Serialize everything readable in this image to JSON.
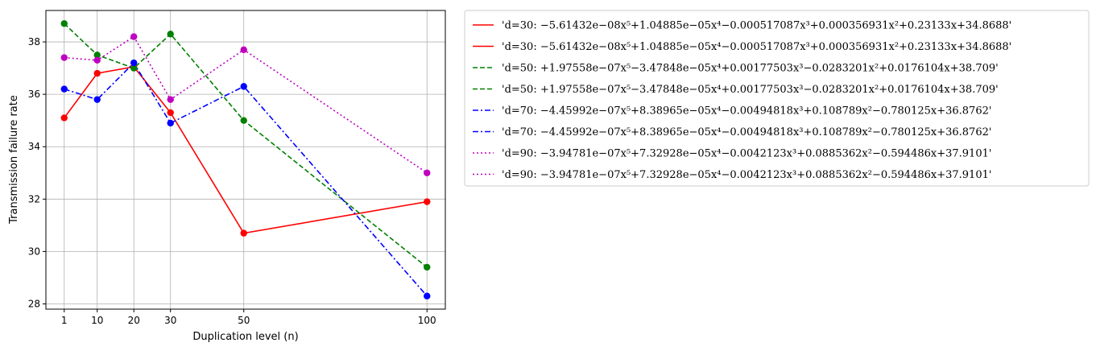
{
  "chart_data": {
    "type": "line",
    "xlabel": "Duplication level (n)",
    "ylabel": "Transmission failure rate",
    "x": [
      1,
      10,
      20,
      30,
      50,
      100
    ],
    "x_ticks": [
      "1",
      "10",
      "20",
      "30",
      "50",
      "100"
    ],
    "y_ticks": [
      "28",
      "30",
      "32",
      "34",
      "36",
      "38"
    ],
    "xlim": [
      -4,
      105
    ],
    "ylim": [
      27.8,
      39.2
    ],
    "grid": true,
    "legend_position": "outside-right",
    "series": [
      {
        "name": "'d=30: −5.61432e−08x⁵+1.04885e−05x⁴−0.000517087x³+0.000356931x²+0.23133x+34.8688'",
        "values": [
          35.1,
          36.8,
          37.05,
          35.3,
          30.7,
          31.9
        ],
        "color": "#ff0000",
        "dash": "solid"
      },
      {
        "name": "'d=30: −5.61432e−08x⁵+1.04885e−05x⁴−0.000517087x³+0.000356931x²+0.23133x+34.8688'",
        "values": null,
        "color": "#ff0000",
        "dash": "solid"
      },
      {
        "name": "'d=50: +1.97558e−07x⁵−3.47848e−05x⁴+0.00177503x³−0.0283201x²+0.0176104x+38.709'",
        "values": [
          38.7,
          37.5,
          37.0,
          38.3,
          35.0,
          29.4
        ],
        "color": "#008000",
        "dash": "dashed"
      },
      {
        "name": "'d=50: +1.97558e−07x⁵−3.47848e−05x⁴+0.00177503x³−0.0283201x²+0.0176104x+38.709'",
        "values": null,
        "color": "#008000",
        "dash": "dashed"
      },
      {
        "name": "'d=70: −4.45992e−07x⁵+8.38965e−05x⁴−0.00494818x³+0.108789x²−0.780125x+36.8762'",
        "values": [
          36.2,
          35.8,
          37.2,
          34.9,
          36.3,
          28.3
        ],
        "color": "#0000ff",
        "dash": "dashdot"
      },
      {
        "name": "'d=70: −4.45992e−07x⁵+8.38965e−05x⁴−0.00494818x³+0.108789x²−0.780125x+36.8762'",
        "values": null,
        "color": "#0000ff",
        "dash": "dashdot"
      },
      {
        "name": "'d=90: −3.94781e−07x⁵+7.32928e−05x⁴−0.0042123x³+0.0885362x²−0.594486x+37.9101'",
        "values": [
          37.4,
          37.3,
          38.2,
          35.8,
          37.7,
          33.0
        ],
        "color": "#bf00bf",
        "dash": "dotted"
      },
      {
        "name": "'d=90: −3.94781e−07x⁵+7.32928e−05x⁴−0.0042123x³+0.0885362x²−0.594486x+37.9101'",
        "values": null,
        "color": "#bf00bf",
        "dash": "dotted"
      }
    ]
  }
}
